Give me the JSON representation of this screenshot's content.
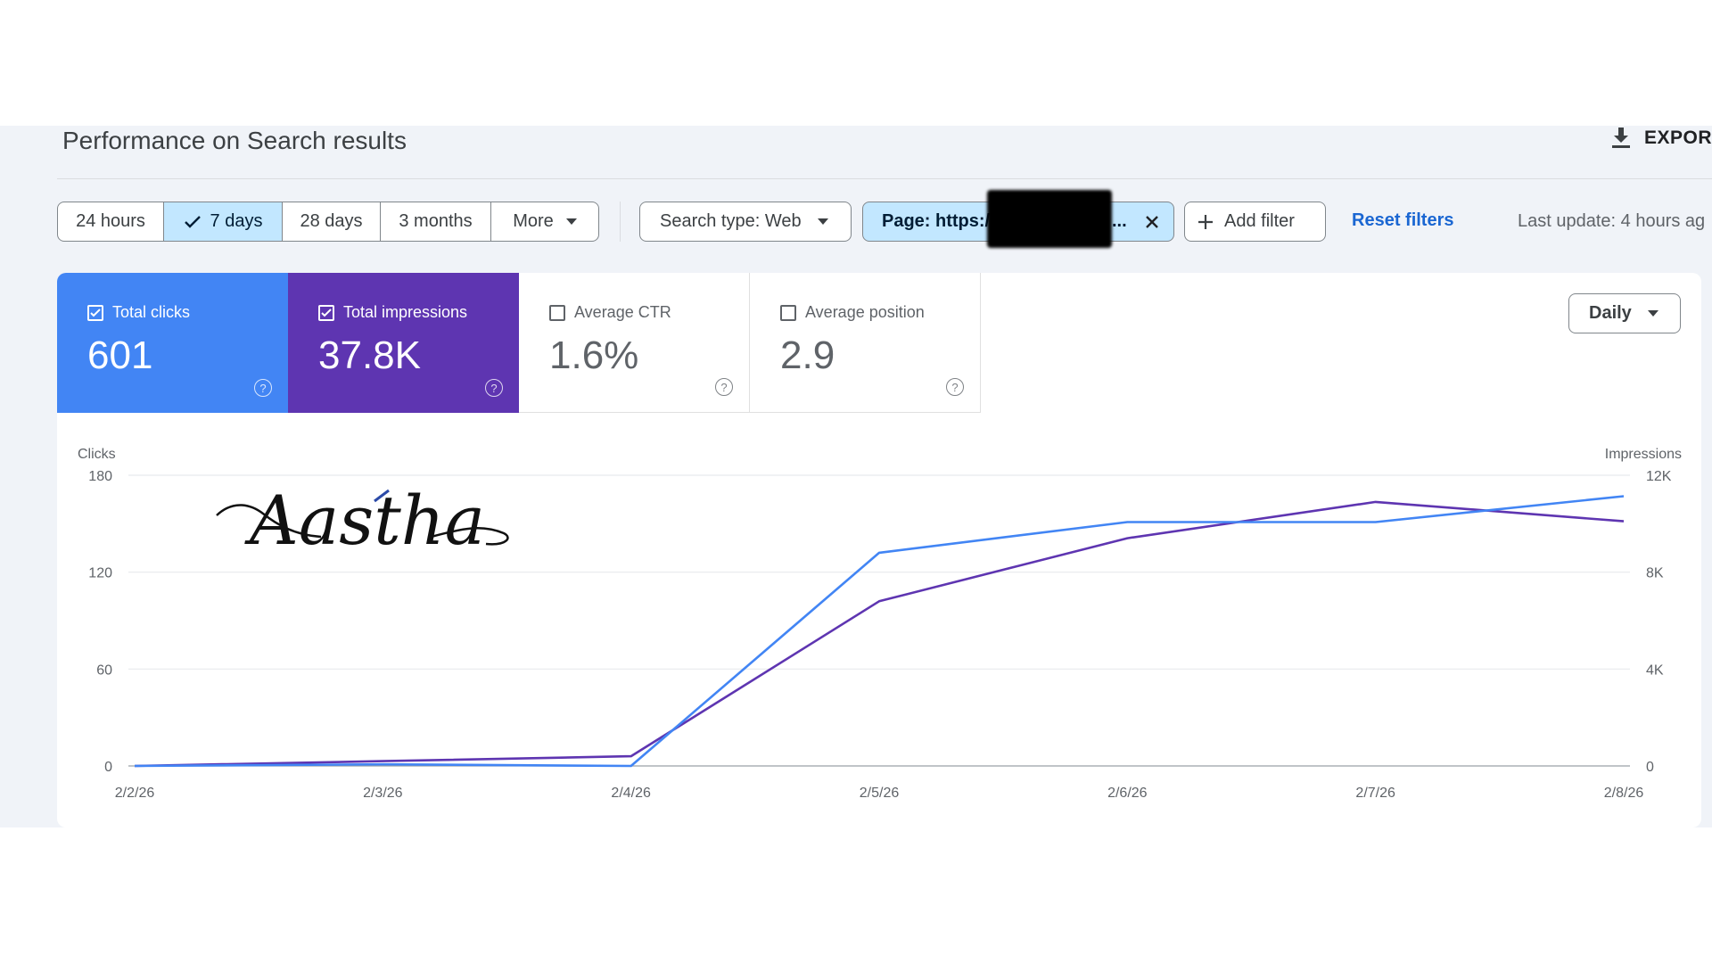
{
  "header": {
    "title": "Performance on Search results",
    "export_label": "EXPORT"
  },
  "date_range": {
    "options": [
      "24 hours",
      "7 days",
      "28 days",
      "3 months",
      "More"
    ],
    "selected": "7 days"
  },
  "filters": {
    "search_type": "Search type: Web",
    "page_filter_prefix": "Page: https:/",
    "page_filter_suffix": "...",
    "add_filter": "Add filter",
    "reset": "Reset filters",
    "last_update": "Last update: 4 hours ag"
  },
  "metrics": [
    {
      "label": "Total clicks",
      "value": "601",
      "checked": true,
      "color": "#4285f4"
    },
    {
      "label": "Total impressions",
      "value": "37.8K",
      "checked": true,
      "color": "#5e35b1"
    },
    {
      "label": "Average CTR",
      "value": "1.6%",
      "checked": false,
      "color": "#ffffff"
    },
    {
      "label": "Average position",
      "value": "2.9",
      "checked": false,
      "color": "#ffffff"
    }
  ],
  "granularity": "Daily",
  "watermark": "Aastha",
  "chart_data": {
    "type": "line",
    "x": [
      "2/2/26",
      "2/3/26",
      "2/4/26",
      "2/5/26",
      "2/6/26",
      "2/7/26",
      "2/8/26"
    ],
    "left_axis": {
      "label": "Clicks",
      "ticks": [
        0,
        60,
        120,
        180
      ],
      "ylim": [
        0,
        180
      ]
    },
    "right_axis": {
      "label": "Impressions",
      "ticks": [
        "0",
        "4K",
        "8K",
        "12K"
      ],
      "ylim": [
        0,
        12000
      ]
    },
    "series": [
      {
        "name": "Total clicks",
        "axis": "left",
        "color": "#4285f4",
        "values": [
          0,
          1,
          0,
          132,
          151,
          151,
          167
        ]
      },
      {
        "name": "Total impressions",
        "axis": "right",
        "color": "#5e35b1",
        "values": [
          0,
          200,
          400,
          6800,
          9400,
          10900,
          10100
        ]
      }
    ],
    "grid": true
  }
}
